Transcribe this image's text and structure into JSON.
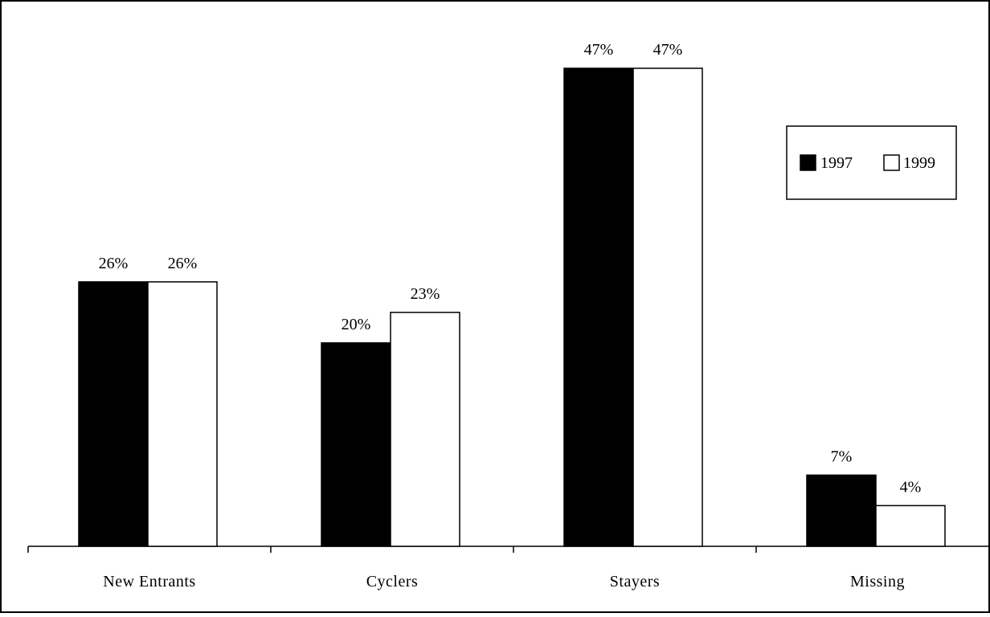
{
  "chart_data": {
    "type": "bar",
    "categories": [
      "New Entrants",
      "Cyclers",
      "Stayers",
      "Missing"
    ],
    "series": [
      {
        "name": "1997",
        "values": [
          26,
          20,
          47,
          7
        ],
        "labels": [
          "26%",
          "20%",
          "47%",
          "7%"
        ],
        "color": "#000000"
      },
      {
        "name": "1999",
        "values": [
          26,
          23,
          47,
          4
        ],
        "labels": [
          "26%",
          "23%",
          "47%",
          "4%"
        ],
        "color": "#ffffff"
      }
    ],
    "title": "",
    "xlabel": "",
    "ylabel": "",
    "ylim": [
      0,
      47
    ],
    "grid": false,
    "legend": "top-right",
    "unit": "%"
  }
}
